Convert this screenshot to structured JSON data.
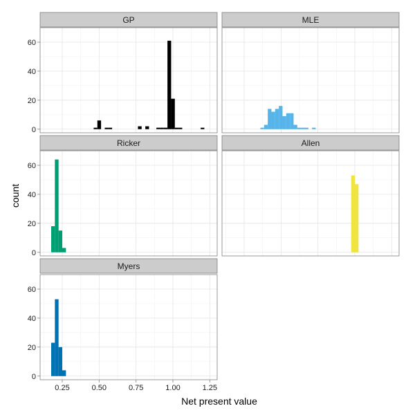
{
  "chart_data": {
    "type": "bar",
    "xlabel": "Net present value",
    "ylabel": "count",
    "xlim": [
      0.1,
      1.3
    ],
    "ylim": [
      -2.5,
      70
    ],
    "x_ticks": [
      0.25,
      0.5,
      0.75,
      1.0,
      1.25
    ],
    "x_tick_labels": [
      "0.25",
      "0.50",
      "0.75",
      "1.00",
      "1.25"
    ],
    "y_ticks": [
      0,
      20,
      40,
      60
    ],
    "y_tick_labels": [
      "0",
      "20",
      "40",
      "60"
    ],
    "grid": true,
    "panels": [
      {
        "name": "GP",
        "color": "#000000",
        "bins": [
          {
            "x0": 0.463,
            "x1": 0.488,
            "count": 1
          },
          {
            "x0": 0.488,
            "x1": 0.513,
            "count": 6
          },
          {
            "x0": 0.538,
            "x1": 0.563,
            "count": 1
          },
          {
            "x0": 0.563,
            "x1": 0.588,
            "count": 1
          },
          {
            "x0": 0.763,
            "x1": 0.788,
            "count": 2
          },
          {
            "x0": 0.813,
            "x1": 0.838,
            "count": 2
          },
          {
            "x0": 0.888,
            "x1": 0.913,
            "count": 1
          },
          {
            "x0": 0.913,
            "x1": 0.938,
            "count": 1
          },
          {
            "x0": 0.938,
            "x1": 0.963,
            "count": 1
          },
          {
            "x0": 0.963,
            "x1": 0.988,
            "count": 61
          },
          {
            "x0": 0.988,
            "x1": 1.013,
            "count": 21
          },
          {
            "x0": 1.013,
            "x1": 1.038,
            "count": 1
          },
          {
            "x0": 1.038,
            "x1": 1.063,
            "count": 1
          },
          {
            "x0": 1.188,
            "x1": 1.213,
            "count": 1
          }
        ]
      },
      {
        "name": "MLE",
        "color": "#56b4e9",
        "bins": [
          {
            "x0": 0.36,
            "x1": 0.385,
            "count": 1
          },
          {
            "x0": 0.385,
            "x1": 0.41,
            "count": 3
          },
          {
            "x0": 0.41,
            "x1": 0.435,
            "count": 14
          },
          {
            "x0": 0.435,
            "x1": 0.46,
            "count": 12
          },
          {
            "x0": 0.46,
            "x1": 0.485,
            "count": 14
          },
          {
            "x0": 0.485,
            "x1": 0.51,
            "count": 16
          },
          {
            "x0": 0.51,
            "x1": 0.535,
            "count": 9
          },
          {
            "x0": 0.535,
            "x1": 0.56,
            "count": 11
          },
          {
            "x0": 0.56,
            "x1": 0.585,
            "count": 11
          },
          {
            "x0": 0.585,
            "x1": 0.61,
            "count": 3
          },
          {
            "x0": 0.61,
            "x1": 0.635,
            "count": 1
          },
          {
            "x0": 0.635,
            "x1": 0.66,
            "count": 1
          },
          {
            "x0": 0.66,
            "x1": 0.685,
            "count": 1
          },
          {
            "x0": 0.71,
            "x1": 0.735,
            "count": 1
          }
        ]
      },
      {
        "name": "Ricker",
        "color": "#009e73",
        "bins": [
          {
            "x0": 0.175,
            "x1": 0.2,
            "count": 18
          },
          {
            "x0": 0.2,
            "x1": 0.225,
            "count": 64
          },
          {
            "x0": 0.225,
            "x1": 0.25,
            "count": 15
          },
          {
            "x0": 0.25,
            "x1": 0.275,
            "count": 3
          }
        ]
      },
      {
        "name": "Allen",
        "color": "#f0e442",
        "bins": [
          {
            "x0": 0.975,
            "x1": 1.0,
            "count": 53
          },
          {
            "x0": 1.0,
            "x1": 1.025,
            "count": 47
          }
        ]
      },
      {
        "name": "Myers",
        "color": "#0072b2",
        "bins": [
          {
            "x0": 0.175,
            "x1": 0.2,
            "count": 23
          },
          {
            "x0": 0.2,
            "x1": 0.225,
            "count": 53
          },
          {
            "x0": 0.225,
            "x1": 0.25,
            "count": 20
          },
          {
            "x0": 0.25,
            "x1": 0.275,
            "count": 4
          }
        ]
      }
    ]
  }
}
